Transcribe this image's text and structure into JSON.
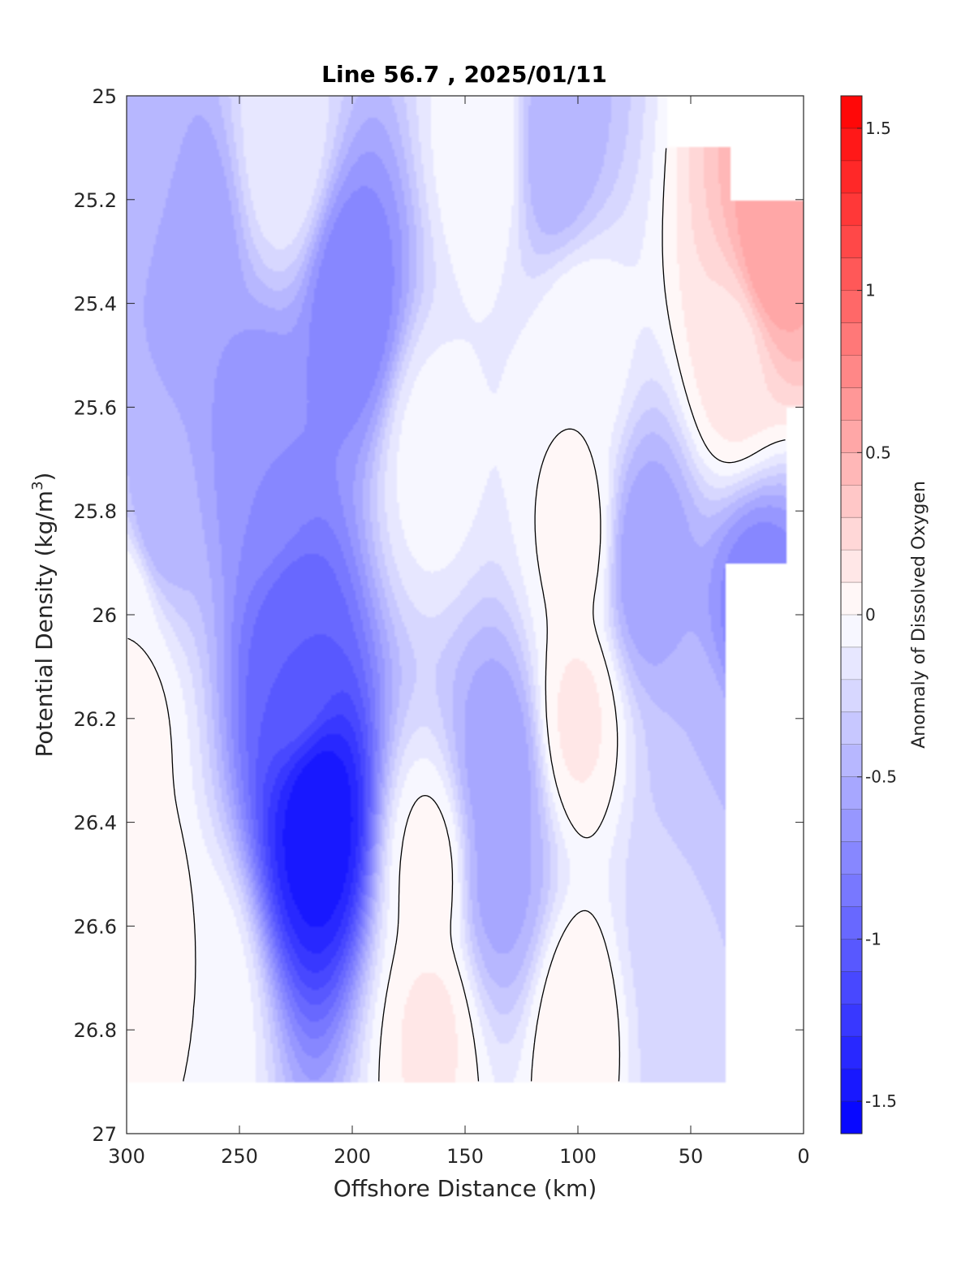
{
  "chart_data": {
    "type": "heatmap",
    "subtype": "filled-contour",
    "title": "Line 56.7 , 2025/01/11",
    "xlabel": "Offshore Distance (km)",
    "ylabel_main": "Potential Density (kg/m",
    "ylabel_sup": "3",
    "ylabel_close": ")",
    "colorbar_label": "Anomaly of Dissolved Oxygen",
    "xlim": [
      300,
      0
    ],
    "x_reversed": true,
    "ylim": [
      25,
      27
    ],
    "y_reversed": true,
    "x_ticks": [
      300,
      250,
      200,
      150,
      100,
      50,
      0
    ],
    "x_tick_labels": [
      "300",
      "250",
      "200",
      "150",
      "100",
      "50",
      "0"
    ],
    "y_ticks": [
      25,
      25.2,
      25.4,
      25.6,
      25.8,
      26,
      26.2,
      26.4,
      26.6,
      26.8,
      27
    ],
    "y_tick_labels": [
      "25",
      "25.2",
      "25.4",
      "25.6",
      "25.8",
      "26",
      "26.2",
      "26.4",
      "26.6",
      "26.8",
      "27"
    ],
    "colorbar_range": [
      -1.6,
      1.6
    ],
    "colorbar_step": 0.1,
    "colorbar_ticks": [
      -1.5,
      -1,
      -0.5,
      0,
      0.5,
      1,
      1.5
    ],
    "colorbar_tick_labels": [
      "-1.5",
      "-1",
      "-0.5",
      "0",
      "0.5",
      "1",
      "1.5"
    ],
    "colormap": {
      "negative_end": "#0000ff",
      "zero": "#ffffff",
      "positive_end": "#ff0000"
    },
    "zero_contour_color": "#000000",
    "data_extent": {
      "x_range": [
        300,
        0
      ],
      "density_range": [
        25,
        26.9
      ],
      "note_visible": "blank above 25.2 near coast and below 26.9"
    },
    "features": [
      {
        "x": 215,
        "density": 26.4,
        "anomaly": -1.5
      },
      {
        "x": 225,
        "density": 26.1,
        "anomaly": -1.0
      },
      {
        "x": 240,
        "density": 25.7,
        "anomaly": -0.7
      },
      {
        "x": 200,
        "density": 25.4,
        "anomaly": -0.8
      },
      {
        "x": 270,
        "density": 25.3,
        "anomaly": -0.6
      },
      {
        "x": 285,
        "density": 25.8,
        "anomaly": -0.5
      },
      {
        "x": 230,
        "density": 25.1,
        "anomaly": -0.1
      },
      {
        "x": 165,
        "density": 25.7,
        "anomaly": -0.05
      },
      {
        "x": 135,
        "density": 26.3,
        "anomaly": -0.6
      },
      {
        "x": 135,
        "density": 26.5,
        "anomaly": -0.55
      },
      {
        "x": 110,
        "density": 25.1,
        "anomaly": -0.5
      },
      {
        "x": 140,
        "density": 25.1,
        "anomaly": 0.0
      },
      {
        "x": 100,
        "density": 25.5,
        "anomaly": 0.0
      },
      {
        "x": 100,
        "density": 26.2,
        "anomaly": 0.12
      },
      {
        "x": 100,
        "density": 25.85,
        "anomaly": 0.05
      },
      {
        "x": 165,
        "density": 26.5,
        "anomaly": 0.05
      },
      {
        "x": 165,
        "density": 26.8,
        "anomaly": 0.12
      },
      {
        "x": 100,
        "density": 26.8,
        "anomaly": 0.1
      },
      {
        "x": 15,
        "density": 25.3,
        "anomaly": 0.6
      },
      {
        "x": 30,
        "density": 25.5,
        "anomaly": 0.15
      },
      {
        "x": 70,
        "density": 25.9,
        "anomaly": -0.6
      },
      {
        "x": 20,
        "density": 26.0,
        "anomaly": -0.8
      },
      {
        "x": 45,
        "density": 26.3,
        "anomaly": -0.4
      },
      {
        "x": 60,
        "density": 26.6,
        "anomaly": -0.25
      },
      {
        "x": 50,
        "density": 26.85,
        "anomaly": -0.3
      },
      {
        "x": 295,
        "density": 26.6,
        "anomaly": 0.1
      },
      {
        "x": 298,
        "density": 26.2,
        "anomaly": 0.05
      },
      {
        "x": 265,
        "density": 26.75,
        "anomaly": 0.0
      },
      {
        "x": 295,
        "density": 25.1,
        "anomaly": -0.4
      },
      {
        "x": 300,
        "density": 26.0,
        "anomaly": 0.0
      }
    ]
  }
}
